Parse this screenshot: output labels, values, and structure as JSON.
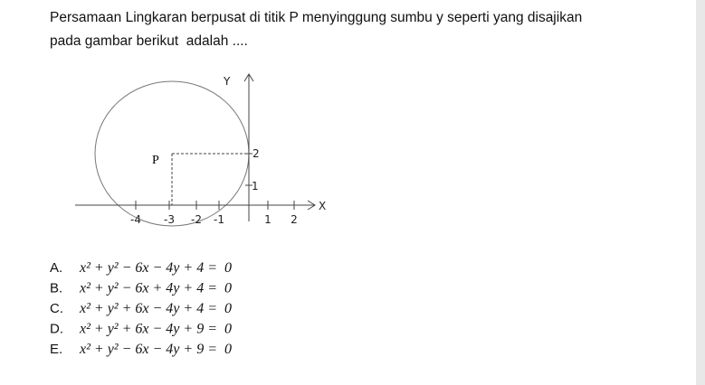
{
  "question": [
    "Persamaan Lingkaran berpusat di titik P menyinggung sumbu y seperti yang disajikan",
    "pada gambar berikut  adalah ...."
  ],
  "diagram": {
    "y_axis": "Y",
    "x_axis": "X",
    "point": "P",
    "x_ticks": [
      "-4",
      "-3",
      "-2",
      "-1",
      "1",
      "2"
    ],
    "y_ticks": [
      "2",
      "1"
    ]
  },
  "options": [
    {
      "letter": "A.",
      "text": "x² + y² − 6x − 4y + 4 =  0"
    },
    {
      "letter": "B.",
      "text": "x² + y² − 6x + 4y + 4 =  0"
    },
    {
      "letter": "C.",
      "text": "x² + y² + 6x − 4y + 4 =  0"
    },
    {
      "letter": "D.",
      "text": "x² + y² + 6x − 4y + 9 =  0"
    },
    {
      "letter": "E.",
      "text": "x² + y² − 6x − 4y + 9 =  0"
    }
  ]
}
